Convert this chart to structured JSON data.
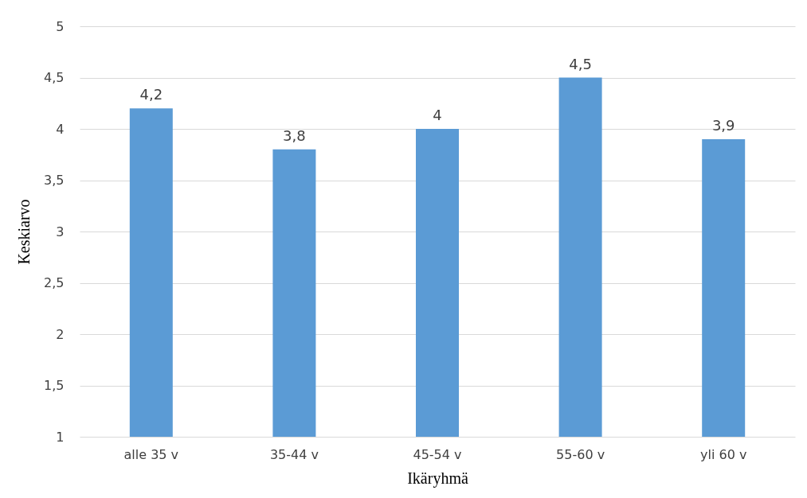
{
  "chart_data": {
    "type": "bar",
    "xlabel": "Ikäryhmä",
    "ylabel": "Keskiarvo",
    "categories": [
      "alle 35 v",
      "35-44 v",
      "45-54 v",
      "55-60 v",
      "yli 60 v"
    ],
    "values": [
      4.2,
      3.8,
      4,
      4.5,
      3.9
    ],
    "color": "#5b9bd5",
    "value_labels": [
      "4,2",
      "3,8",
      "4",
      "4,5",
      "3,9"
    ],
    "ylim": [
      1,
      5
    ],
    "yticks": [
      1,
      {
        "value": 1.5,
        "label": "1,5"
      },
      2,
      {
        "value": 2.5,
        "label": "2,5"
      },
      3,
      {
        "value": 3.5,
        "label": "3,5"
      },
      4,
      {
        "value": 4.5,
        "label": "4,5"
      },
      5
    ],
    "grid": "y"
  }
}
